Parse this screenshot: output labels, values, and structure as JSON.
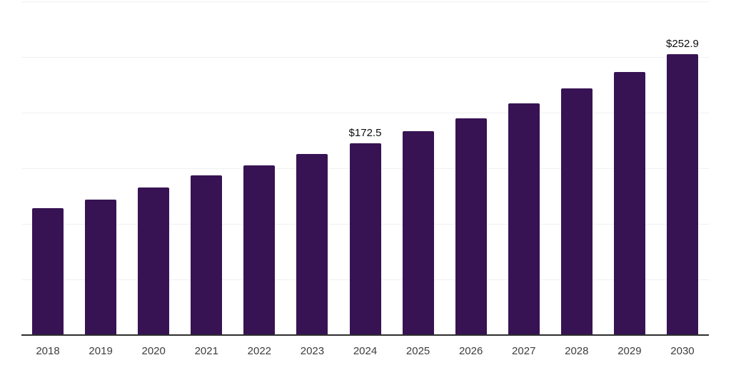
{
  "chart_data": {
    "type": "bar",
    "title": "",
    "xlabel": "",
    "ylabel": "",
    "categories": [
      "2018",
      "2019",
      "2020",
      "2021",
      "2022",
      "2023",
      "2024",
      "2025",
      "2026",
      "2027",
      "2028",
      "2029",
      "2030"
    ],
    "values": [
      114.4,
      121.9,
      132.9,
      143.8,
      152.8,
      163.0,
      172.5,
      183.4,
      195.0,
      208.4,
      221.8,
      236.5,
      252.9
    ],
    "value_labels": [
      {
        "category": "2024",
        "text": "$172.5"
      },
      {
        "category": "2030",
        "text": "$252.9"
      }
    ],
    "ylim": [
      0,
      300
    ],
    "gridline_step": 50,
    "grid": true,
    "legend_position": "none",
    "colors": {
      "bar": "#371353",
      "grid": "#f0f0f0",
      "axis": "#2e2e2e",
      "tick_label": "#3d3d3d",
      "value_label": "#0d0d0d",
      "background": "#ffffff"
    }
  }
}
